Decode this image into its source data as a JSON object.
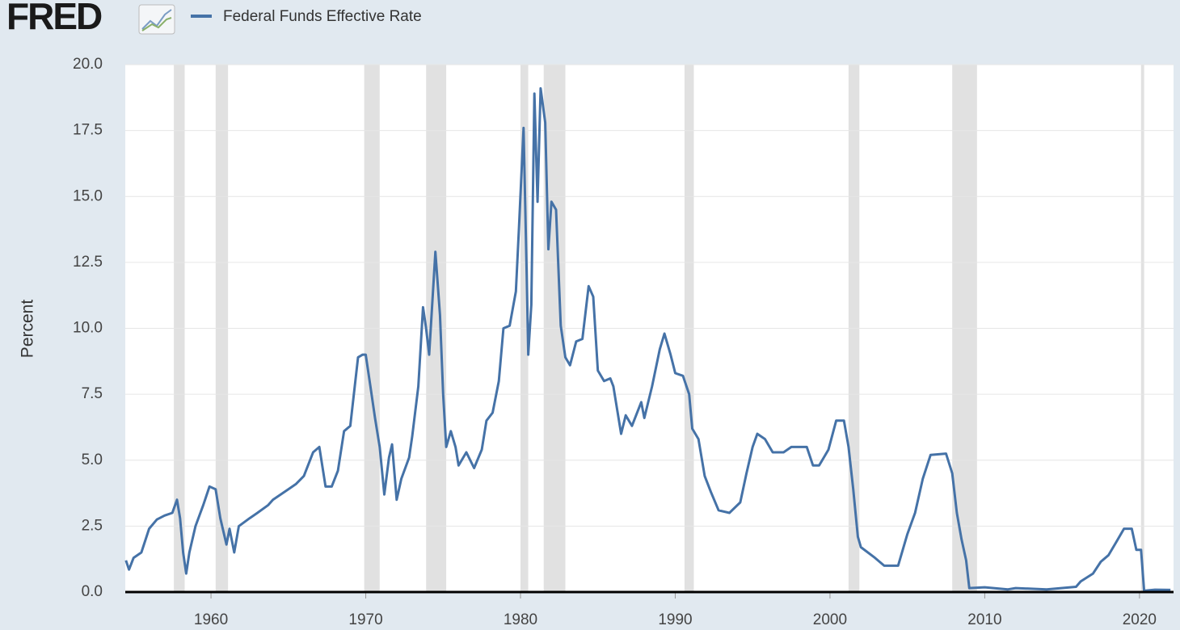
{
  "header": {
    "logo": "FRED"
  },
  "chart_data": {
    "type": "line",
    "y_label": "Percent",
    "xlim": [
      1954.46,
      2022.2
    ],
    "xticks": [
      1960,
      1970,
      1980,
      1990,
      2000,
      2010,
      2020
    ],
    "ylim": [
      0,
      20
    ],
    "yticks": [
      {
        "value": 0,
        "label": "0.0"
      },
      2.5,
      {
        "value": 5,
        "label": "5.0"
      },
      7.5,
      {
        "value": 10,
        "label": "10.0"
      },
      12.5,
      {
        "value": 15,
        "label": "15.0"
      },
      17.5,
      {
        "value": 20,
        "label": "20.0"
      }
    ],
    "grid": true,
    "recession_color": "#e1e1e1",
    "recessions": [
      [
        1957.6,
        1958.3
      ],
      [
        1960.3,
        1961.1
      ],
      [
        1969.9,
        1970.9
      ],
      [
        1973.9,
        1975.2
      ],
      [
        1980.0,
        1980.5
      ],
      [
        1981.5,
        1982.9
      ],
      [
        1990.6,
        1991.2
      ],
      [
        2001.2,
        2001.9
      ],
      [
        2007.9,
        2009.5
      ],
      [
        2020.1,
        2020.3
      ]
    ],
    "series": [
      {
        "name": "Federal Funds Effective Rate",
        "color": "#4572a7",
        "x": [
          1954.5,
          1954.7,
          1955.0,
          1955.5,
          1956.0,
          1956.5,
          1957.0,
          1957.5,
          1957.8,
          1958.0,
          1958.2,
          1958.4,
          1958.6,
          1959.0,
          1959.5,
          1959.9,
          1960.3,
          1960.6,
          1961.0,
          1961.2,
          1961.5,
          1961.8,
          1962.5,
          1963.0,
          1963.7,
          1964.0,
          1965.0,
          1965.5,
          1966.0,
          1966.6,
          1967.0,
          1967.4,
          1967.8,
          1968.2,
          1968.6,
          1969.0,
          1969.5,
          1969.8,
          1970.0,
          1970.3,
          1970.6,
          1970.9,
          1971.2,
          1971.5,
          1971.7,
          1972.0,
          1972.3,
          1972.8,
          1973.0,
          1973.4,
          1973.7,
          1973.9,
          1974.1,
          1974.5,
          1974.8,
          1975.0,
          1975.2,
          1975.5,
          1975.8,
          1976.0,
          1976.5,
          1977.0,
          1977.5,
          1977.8,
          1978.2,
          1978.6,
          1978.9,
          1979.3,
          1979.7,
          1979.9,
          1980.2,
          1980.4,
          1980.5,
          1980.7,
          1980.9,
          1981.1,
          1981.3,
          1981.6,
          1981.8,
          1982.0,
          1982.3,
          1982.6,
          1982.9,
          1983.2,
          1983.6,
          1984.0,
          1984.4,
          1984.7,
          1985.0,
          1985.4,
          1985.8,
          1986.0,
          1986.5,
          1986.8,
          1987.2,
          1987.8,
          1988.0,
          1988.5,
          1989.0,
          1989.3,
          1989.7,
          1990.0,
          1990.5,
          1990.9,
          1991.1,
          1991.5,
          1991.9,
          1992.3,
          1992.8,
          1993.5,
          1994.2,
          1994.6,
          1995.0,
          1995.3,
          1995.8,
          1996.3,
          1997.0,
          1997.5,
          1998.5,
          1998.9,
          1999.3,
          1999.9,
          2000.4,
          2000.9,
          2001.2,
          2001.5,
          2001.8,
          2002.0,
          2002.9,
          2003.5,
          2004.4,
          2005.0,
          2005.5,
          2006.0,
          2006.5,
          2007.5,
          2007.9,
          2008.2,
          2008.5,
          2008.8,
          2009.0,
          2010.0,
          2011.5,
          2012.0,
          2014.0,
          2015.9,
          2016.2,
          2017.0,
          2017.5,
          2018.0,
          2018.5,
          2019.0,
          2019.5,
          2019.8,
          2020.1,
          2020.3,
          2021.0,
          2022.0
        ],
        "values": [
          1.2,
          0.85,
          1.3,
          1.5,
          2.4,
          2.75,
          2.9,
          3.0,
          3.5,
          2.8,
          1.5,
          0.7,
          1.5,
          2.5,
          3.3,
          4.0,
          3.9,
          2.8,
          1.8,
          2.4,
          1.5,
          2.5,
          2.8,
          3.0,
          3.3,
          3.5,
          3.9,
          4.1,
          4.4,
          5.3,
          5.5,
          4.0,
          4.0,
          4.6,
          6.1,
          6.3,
          8.9,
          9.0,
          9.0,
          7.8,
          6.6,
          5.5,
          3.7,
          5.1,
          5.6,
          3.5,
          4.3,
          5.1,
          5.9,
          7.8,
          10.8,
          10.0,
          9.0,
          12.9,
          10.5,
          7.5,
          5.5,
          6.1,
          5.5,
          4.8,
          5.3,
          4.7,
          5.4,
          6.5,
          6.8,
          8.0,
          10.0,
          10.1,
          11.4,
          13.8,
          17.6,
          12.0,
          9.0,
          10.9,
          18.9,
          14.8,
          19.1,
          17.8,
          13.0,
          14.8,
          14.5,
          10.1,
          8.9,
          8.6,
          9.5,
          9.6,
          11.6,
          11.2,
          8.4,
          8.0,
          8.1,
          7.8,
          6.0,
          6.7,
          6.3,
          7.2,
          6.6,
          7.8,
          9.2,
          9.8,
          9.0,
          8.3,
          8.2,
          7.5,
          6.2,
          5.8,
          4.4,
          3.8,
          3.1,
          3.0,
          3.4,
          4.5,
          5.5,
          6.0,
          5.8,
          5.3,
          5.3,
          5.5,
          5.5,
          4.8,
          4.8,
          5.4,
          6.5,
          6.5,
          5.5,
          3.9,
          2.1,
          1.7,
          1.3,
          1.0,
          1.0,
          2.2,
          3.0,
          4.3,
          5.2,
          5.25,
          4.5,
          3.0,
          2.0,
          1.2,
          0.15,
          0.18,
          0.1,
          0.15,
          0.1,
          0.2,
          0.4,
          0.7,
          1.15,
          1.4,
          1.9,
          2.4,
          2.4,
          1.6,
          1.6,
          0.05,
          0.09,
          0.08
        ]
      }
    ]
  }
}
